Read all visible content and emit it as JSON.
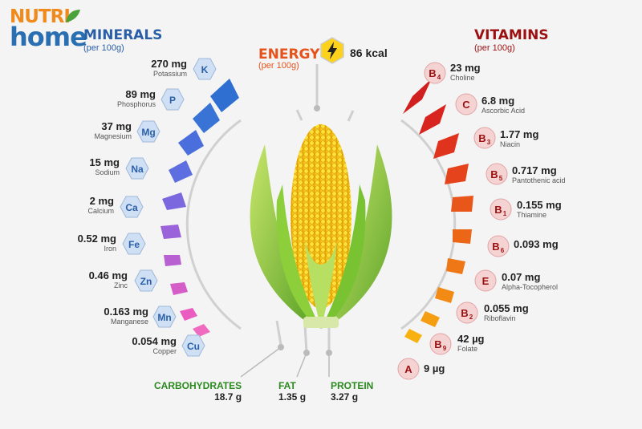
{
  "logo": {
    "line1": "NUTRI",
    "line2": "home"
  },
  "minerals": {
    "title": "MINERALS",
    "subtitle": "(per 100g)",
    "items": [
      {
        "value": "270 mg",
        "name": "Potassium",
        "symbol": "K"
      },
      {
        "value": "89 mg",
        "name": "Phosphorus",
        "symbol": "P"
      },
      {
        "value": "37 mg",
        "name": "Magnesium",
        "symbol": "Mg"
      },
      {
        "value": "15 mg",
        "name": "Sodium",
        "symbol": "Na"
      },
      {
        "value": "2 mg",
        "name": "Calcium",
        "symbol": "Ca"
      },
      {
        "value": "0.52 mg",
        "name": "Iron",
        "symbol": "Fe"
      },
      {
        "value": "0.46 mg",
        "name": "Zinc",
        "symbol": "Zn"
      },
      {
        "value": "0.163 mg",
        "name": "Manganese",
        "symbol": "Mn"
      },
      {
        "value": "0.054 mg",
        "name": "Copper",
        "symbol": "Cu"
      }
    ]
  },
  "energy": {
    "title": "ENERGY",
    "subtitle": "(per 100g)",
    "value": "86 kcal",
    "icon": "lightning-icon"
  },
  "vitamins": {
    "title": "VITAMINS",
    "subtitle": "(per 100g)",
    "items": [
      {
        "value": "23 mg",
        "name": "Choline",
        "letter": "B",
        "sub": "4"
      },
      {
        "value": "6.8 mg",
        "name": "Ascorbic Acid",
        "letter": "C",
        "sub": ""
      },
      {
        "value": "1.77 mg",
        "name": "Niacin",
        "letter": "B",
        "sub": "3"
      },
      {
        "value": "0.717 mg",
        "name": "Pantothenic acid",
        "letter": "B",
        "sub": "5"
      },
      {
        "value": "0.155 mg",
        "name": "Thiamine",
        "letter": "B",
        "sub": "1"
      },
      {
        "value": "0.093 mg",
        "name": "",
        "letter": "B",
        "sub": "6"
      },
      {
        "value": "0.07 mg",
        "name": "Alpha-Tocopherol",
        "letter": "E",
        "sub": ""
      },
      {
        "value": "0.055 mg",
        "name": "Riboflavin",
        "letter": "B",
        "sub": "2"
      },
      {
        "value": "42 µg",
        "name": "Folate",
        "letter": "B",
        "sub": "9"
      },
      {
        "value": "9 µg",
        "name": "",
        "letter": "A",
        "sub": ""
      }
    ]
  },
  "macros": [
    {
      "label": "CARBOHYDRATES",
      "value": "18.7 g"
    },
    {
      "label": "FAT",
      "value": "1.35 g"
    },
    {
      "label": "PROTEIN",
      "value": "3.27 g"
    }
  ],
  "colors": {
    "mineral_blue": "#2a5fa8",
    "vitamin_red": "#9b1111",
    "energy_orange": "#e5531b",
    "macro_green": "#2a8a1e"
  }
}
